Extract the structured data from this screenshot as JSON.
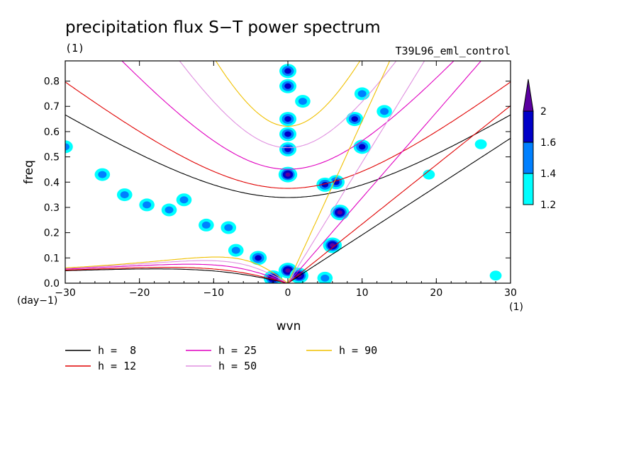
{
  "chart_data": {
    "type": "contour",
    "title": "precipitation flux S−T power spectrum",
    "units_left": "(1)",
    "run_label": "T39L96_eml_control",
    "xlabel": "wvn",
    "ylabel": "freq",
    "x_unit": "(1)",
    "y_unit": "(day−1)",
    "xlim": [
      -30,
      30
    ],
    "ylim": [
      0,
      0.88
    ],
    "xticks": [
      -30,
      -20,
      -10,
      0,
      10,
      20,
      30
    ],
    "yticks": [
      0.0,
      0.1,
      0.2,
      0.3,
      0.4,
      0.5,
      0.6,
      0.7,
      0.8
    ],
    "xtick_labels": [
      "−30",
      "−20",
      "−10",
      "0",
      "10",
      "20",
      "30"
    ],
    "ytick_labels": [
      "0.0",
      "0.1",
      "0.2",
      "0.3",
      "0.4",
      "0.5",
      "0.6",
      "0.7",
      "0.8"
    ],
    "colorbar": {
      "levels": [
        1.2,
        1.4,
        1.6,
        2.0
      ],
      "labels": [
        "1.2",
        "1.4",
        "1.6",
        "2"
      ],
      "colors": [
        "#00ffff",
        "#0080ff",
        "#0000c8",
        "#5a00a0"
      ]
    },
    "dispersion_curves": [
      {
        "h": 8,
        "label": "h =  8",
        "color": "#000000"
      },
      {
        "h": 12,
        "label": "h = 12",
        "color": "#e00000"
      },
      {
        "h": 25,
        "label": "h = 25",
        "color": "#e000c0"
      },
      {
        "h": 50,
        "label": "h = 50",
        "color": "#e090e0"
      },
      {
        "h": 90,
        "label": "h = 90",
        "color": "#f0c000"
      }
    ],
    "blobs": [
      {
        "x": 0,
        "y": 0.84,
        "level": 2
      },
      {
        "x": 0,
        "y": 0.78,
        "level": 2
      },
      {
        "x": 0,
        "y": 0.65,
        "level": 2
      },
      {
        "x": 0,
        "y": 0.59,
        "level": 2
      },
      {
        "x": 0,
        "y": 0.53,
        "level": 2
      },
      {
        "x": 0,
        "y": 0.43,
        "level": 3
      },
      {
        "x": 0,
        "y": 0.05,
        "level": 3
      },
      {
        "x": -2,
        "y": 0.02,
        "level": 3
      },
      {
        "x": 1.5,
        "y": 0.03,
        "level": 3
      },
      {
        "x": -4,
        "y": 0.1,
        "level": 2
      },
      {
        "x": 6,
        "y": 0.15,
        "level": 3
      },
      {
        "x": 7,
        "y": 0.28,
        "level": 3
      },
      {
        "x": 6.5,
        "y": 0.4,
        "level": 2
      },
      {
        "x": 5,
        "y": 0.39,
        "level": 2
      },
      {
        "x": 10,
        "y": 0.54,
        "level": 2
      },
      {
        "x": 9,
        "y": 0.65,
        "level": 2
      },
      {
        "x": 10,
        "y": 0.75,
        "level": 1
      },
      {
        "x": 13,
        "y": 0.68,
        "level": 1
      },
      {
        "x": -19,
        "y": 0.31,
        "level": 1
      },
      {
        "x": -16,
        "y": 0.29,
        "level": 1
      },
      {
        "x": -11,
        "y": 0.23,
        "level": 1
      },
      {
        "x": -14,
        "y": 0.33,
        "level": 1
      },
      {
        "x": -22,
        "y": 0.35,
        "level": 1
      },
      {
        "x": -25,
        "y": 0.43,
        "level": 1
      },
      {
        "x": -8,
        "y": 0.22,
        "level": 1
      },
      {
        "x": -7,
        "y": 0.13,
        "level": 1
      },
      {
        "x": 2,
        "y": 0.72,
        "level": 1
      },
      {
        "x": 5,
        "y": 0.02,
        "level": 1
      },
      {
        "x": -30,
        "y": 0.54,
        "level": 1
      },
      {
        "x": 26,
        "y": 0.55,
        "level": 0
      },
      {
        "x": 19,
        "y": 0.43,
        "level": 0
      },
      {
        "x": 28,
        "y": 0.03,
        "level": 0
      }
    ]
  }
}
